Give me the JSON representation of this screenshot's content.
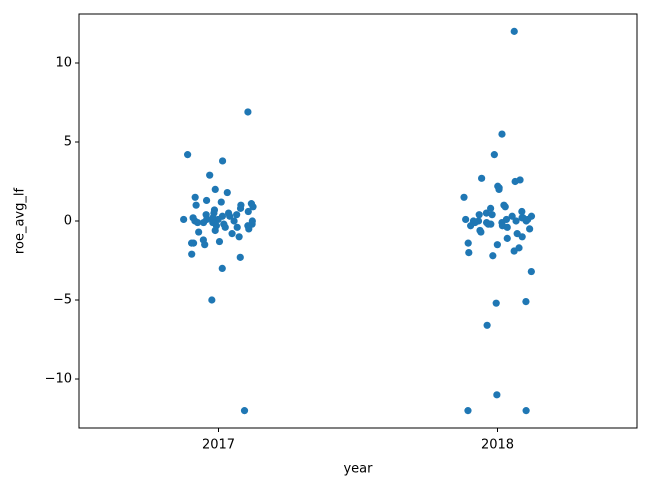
{
  "chart_data": {
    "type": "strip",
    "x_label": "year",
    "y_label": "roe_avg_lf",
    "categories": [
      "2017",
      "2018"
    ],
    "series": [
      {
        "name": null,
        "color": "#1f77b4",
        "values": [
          [
            6.9,
            4.2,
            3.8,
            2.9,
            2.0,
            1.8,
            1.5,
            1.3,
            1.2,
            1.1,
            1.0,
            1.0,
            0.9,
            0.8,
            0.7,
            0.6,
            0.5,
            0.5,
            0.4,
            0.4,
            0.3,
            0.3,
            0.2,
            0.2,
            0.1,
            0.1,
            0.1,
            0.0,
            0.0,
            0.0,
            0.0,
            -0.1,
            -0.1,
            -0.1,
            -0.2,
            -0.2,
            -0.3,
            -0.3,
            -0.4,
            -0.4,
            -0.5,
            -0.6,
            -0.7,
            -0.8,
            -1.0,
            -1.2,
            -1.3,
            -1.4,
            -1.4,
            -1.5,
            -2.1,
            -2.3,
            -3.0,
            -5.0,
            -12.0
          ],
          [
            12.0,
            5.5,
            4.2,
            2.7,
            2.6,
            2.5,
            2.2,
            2.1,
            2.0,
            1.5,
            1.0,
            0.9,
            0.8,
            0.6,
            0.5,
            0.4,
            0.4,
            0.3,
            0.3,
            0.2,
            0.2,
            0.1,
            0.1,
            0.1,
            0.0,
            0.0,
            0.0,
            0.0,
            -0.1,
            -0.1,
            -0.1,
            -0.2,
            -0.2,
            -0.3,
            -0.3,
            -0.4,
            -0.5,
            -0.6,
            -0.7,
            -0.8,
            -1.0,
            -1.1,
            -1.4,
            -1.5,
            -1.7,
            -1.9,
            -2.0,
            -2.2,
            -3.2,
            -5.1,
            -5.2,
            -6.6,
            -11.0,
            -12.0,
            -12.0
          ]
        ]
      }
    ],
    "ylim": [
      -13.1,
      13.1
    ],
    "yticks": [
      {
        "value": -10,
        "label": "−10"
      },
      {
        "value": -5,
        "label": "−5"
      },
      0,
      5,
      10
    ]
  }
}
